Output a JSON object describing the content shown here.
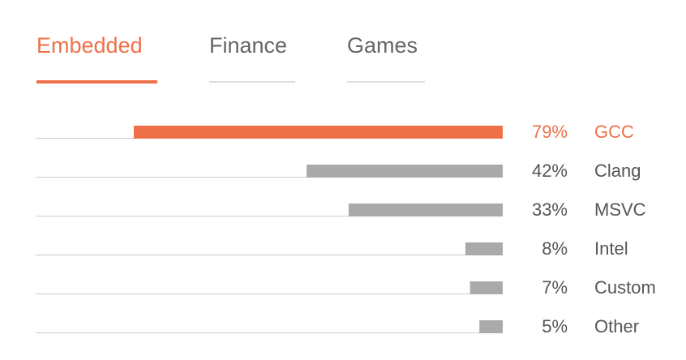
{
  "tabs": [
    {
      "label": "Embedded",
      "active": true
    },
    {
      "label": "Finance",
      "active": false
    },
    {
      "label": "Games",
      "active": false
    }
  ],
  "colors": {
    "accent": "#ee7048",
    "bar": "#aaaaaa",
    "baseline": "#cccccc",
    "text": "#555555"
  },
  "chart_data": {
    "type": "bar",
    "orientation": "horizontal",
    "categories": [
      "GCC",
      "Clang",
      "MSVC",
      "Intel",
      "Custom",
      "Other"
    ],
    "values": [
      79,
      42,
      33,
      8,
      7,
      5
    ],
    "value_labels": [
      "79%",
      "42%",
      "33%",
      "8%",
      "7%",
      "5%"
    ],
    "highlighted": "GCC",
    "xlim": [
      0,
      100
    ],
    "bar_direction": "right-aligned",
    "grid": false,
    "legend": "none"
  }
}
